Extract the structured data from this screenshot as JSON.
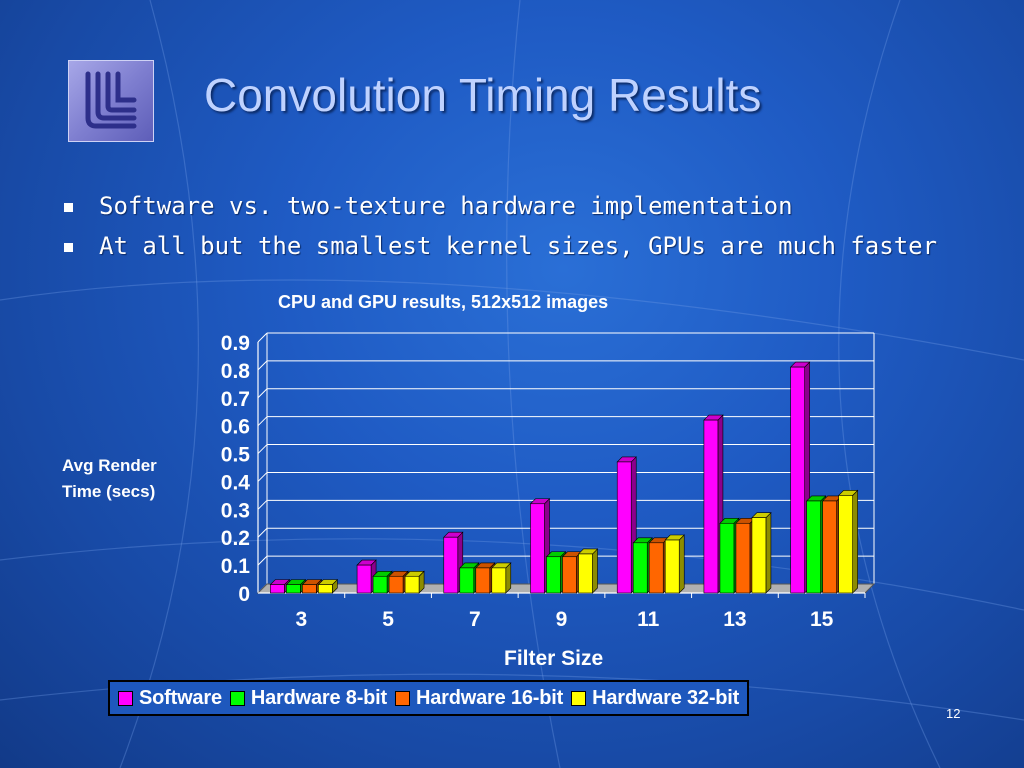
{
  "slide": {
    "title": "Convolution Timing Results",
    "bullets": [
      "Software vs. two-texture hardware implementation",
      "At all but the smallest kernel sizes, GPUs are much faster"
    ],
    "slide_number": "12",
    "logo_icon": "university-logo-icon"
  },
  "chart_data": {
    "type": "bar",
    "title": "CPU and GPU results, 512x512 images",
    "xlabel": "Filter Size",
    "ylabel": "Avg Render Time (secs)",
    "categories": [
      "3",
      "5",
      "7",
      "9",
      "11",
      "13",
      "15"
    ],
    "series": [
      {
        "name": "Software",
        "color": "#ff00ff",
        "values": [
          0.03,
          0.1,
          0.2,
          0.32,
          0.47,
          0.62,
          0.81
        ]
      },
      {
        "name": "Hardware 8-bit",
        "color": "#00ff00",
        "values": [
          0.03,
          0.06,
          0.09,
          0.13,
          0.18,
          0.25,
          0.33
        ]
      },
      {
        "name": "Hardware 16-bit",
        "color": "#ff6600",
        "values": [
          0.03,
          0.06,
          0.09,
          0.13,
          0.18,
          0.25,
          0.33
        ]
      },
      {
        "name": "Hardware 32-bit",
        "color": "#ffff00",
        "values": [
          0.03,
          0.06,
          0.09,
          0.14,
          0.19,
          0.27,
          0.35
        ]
      }
    ],
    "yticks": [
      "0",
      "0.1",
      "0.2",
      "0.3",
      "0.4",
      "0.5",
      "0.6",
      "0.7",
      "0.8",
      "0.9"
    ],
    "ylim": [
      0,
      0.9
    ],
    "grid": true,
    "legend_position": "bottom"
  }
}
